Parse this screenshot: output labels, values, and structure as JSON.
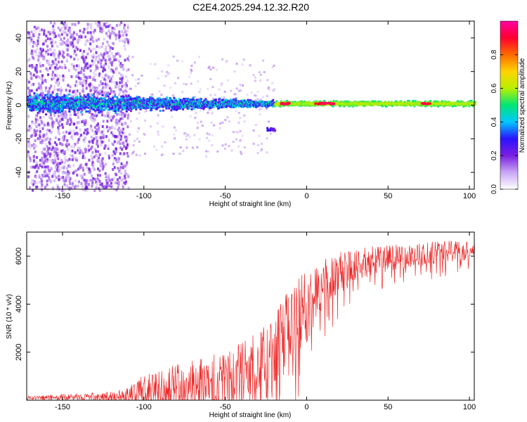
{
  "figure_title": "C2E4.2025.294.12.32.R20",
  "chart_data": [
    {
      "type": "heatmap",
      "title": "C2E4.2025.294.12.32.R20",
      "xlabel": "Height of straight line (km)",
      "ylabel": "Frequency (Hz)",
      "xlim": [
        -172,
        103
      ],
      "ylim": [
        -50,
        50
      ],
      "x_ticks": [
        -150,
        -100,
        -50,
        0,
        50,
        100
      ],
      "x_tick_labels": [
        "-150",
        "-100",
        "-50",
        "0",
        "50",
        "100"
      ],
      "y_ticks": [
        -40,
        -20,
        0,
        20,
        40
      ],
      "y_tick_labels": [
        "-40",
        "-20",
        "0",
        "20",
        "40"
      ],
      "colorbar": {
        "label": "Normalized spectral amplitude",
        "range": [
          0,
          1
        ],
        "ticks": [
          0.0,
          0.2,
          0.4,
          0.6,
          0.8
        ],
        "tick_labels": [
          "0.0",
          "0.2",
          "0.4",
          "0.6",
          "0.8"
        ],
        "colormap": [
          "#ffffff",
          "#c9a6f5",
          "#7a1fe0",
          "#2b12ff",
          "#00c8ff",
          "#00e676",
          "#b8f000",
          "#ffd400",
          "#ff6a00",
          "#ff0030",
          "#ff00a0"
        ]
      },
      "description_of_features": {
        "noise_region_x": [
          -172,
          -110
        ],
        "band_center_hz": 1.5,
        "band_halfwidth_hz_low_x": 7,
        "band_halfwidth_hz_high_x": 2,
        "red_peaks_x": [
          -14,
          7,
          13,
          72
        ],
        "secondary_patch": {
          "x": -22,
          "y": -14
        }
      }
    },
    {
      "type": "line",
      "xlabel": "Height of straight line (km)",
      "ylabel": "SNR (10 * v/v)",
      "xlim": [
        -172,
        103
      ],
      "ylim": [
        0,
        7000
      ],
      "x_ticks": [
        -150,
        -100,
        -50,
        0,
        50,
        100
      ],
      "x_tick_labels": [
        "-150",
        "-100",
        "-50",
        "0",
        "50",
        "100"
      ],
      "y_ticks": [
        2000,
        4000,
        6000
      ],
      "y_tick_labels": [
        "2000",
        "4000",
        "6000"
      ],
      "color": "#ee2a2a",
      "series": [
        {
          "name": "SNR",
          "envelope": {
            "x": [
              -172,
              -150,
              -120,
              -105,
              -100,
              -80,
              -60,
              -40,
              -30,
              -20,
              -12,
              -5,
              0,
              5,
              10,
              20,
              30,
              40,
              50,
              60,
              75,
              90,
              103
            ],
            "base": [
              100,
              120,
              150,
              250,
              400,
              600,
              800,
              1100,
              1400,
              1900,
              2500,
              3300,
              3900,
              4400,
              4800,
              5300,
              5600,
              5800,
              5900,
              6000,
              6100,
              6200,
              6300
            ],
            "amplitude": [
              80,
              120,
              200,
              500,
              700,
              900,
              1100,
              1300,
              1500,
              1800,
              2000,
              1800,
              1500,
              1300,
              1100,
              900,
              700,
              600,
              550,
              500,
              500,
              450,
              400
            ]
          }
        }
      ]
    }
  ]
}
